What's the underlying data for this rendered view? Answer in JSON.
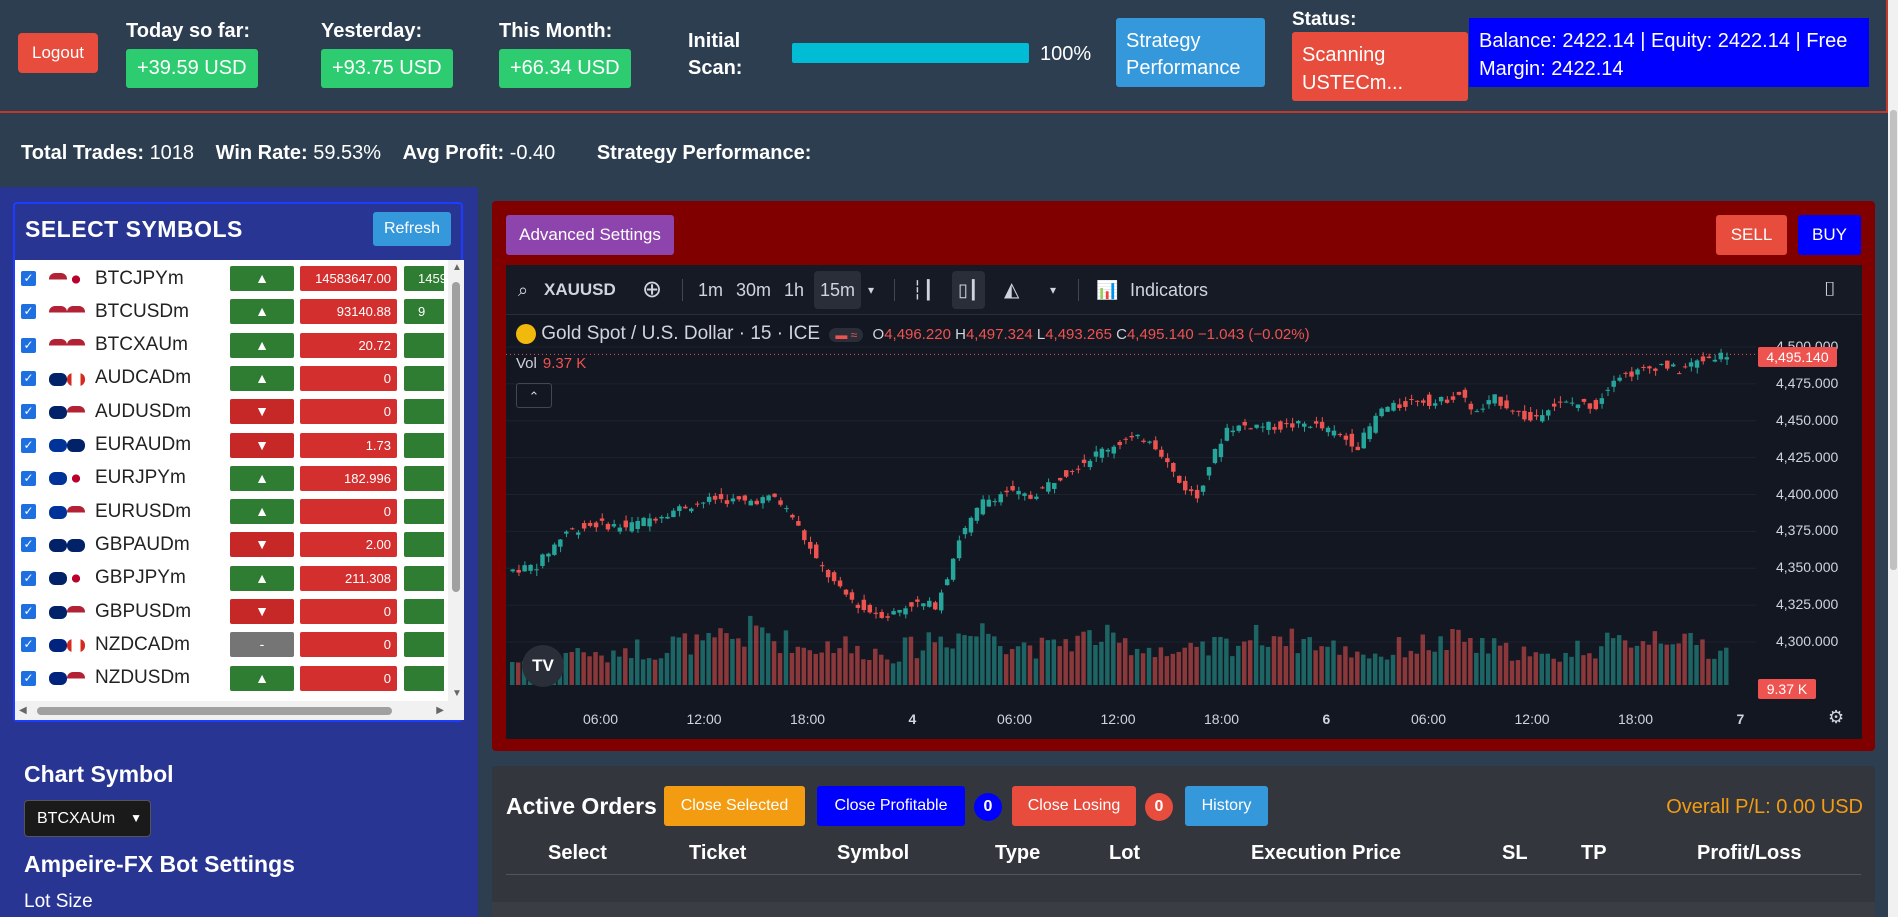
{
  "header": {
    "logout_label": "Logout",
    "today_label": "Today so far:",
    "today_value": "+39.59 USD",
    "yesterday_label": "Yesterday:",
    "yesterday_value": "+93.75 USD",
    "month_label": "This Month:",
    "month_value": "+66.34 USD",
    "scan_label_1": "Initial",
    "scan_label_2": "Scan:",
    "scan_progress": 1.0,
    "scan_percent": "100%",
    "strategy_label_1": "Strategy",
    "strategy_label_2": "Performance",
    "status_label": "Status:",
    "status_value_1": "Scanning",
    "status_value_2": "USTECm...",
    "balance_line_1": "Balance: 2422.14 | Equity: 2422.14 | Free",
    "balance_line_2": "Margin: 2422.14"
  },
  "summary": {
    "trades_label": "Total Trades:",
    "trades_value": "1018",
    "winrate_label": "Win Rate:",
    "winrate_value": "59.53%",
    "avgprofit_label": "Avg Profit:",
    "avgprofit_value": "-0.40",
    "strategy_label": "Strategy Performance:"
  },
  "sidebar": {
    "title": "SELECT SYMBOLS",
    "refresh_label": "Refresh",
    "symbols": [
      {
        "name": "BTCJPYm",
        "dir": "up",
        "price": "14583647.00",
        "next": "1459",
        "flags": [
          "us",
          "jp"
        ]
      },
      {
        "name": "BTCUSDm",
        "dir": "up",
        "price": "93140.88",
        "next": "9",
        "flags": [
          "us",
          "us"
        ]
      },
      {
        "name": "BTCXAUm",
        "dir": "up",
        "price": "20.72",
        "next": "",
        "flags": [
          "us",
          "us"
        ]
      },
      {
        "name": "AUDCADm",
        "dir": "up",
        "price": "0",
        "next": "",
        "flags": [
          "au",
          "ca"
        ]
      },
      {
        "name": "AUDUSDm",
        "dir": "down",
        "price": "0",
        "next": "",
        "flags": [
          "au",
          "us"
        ]
      },
      {
        "name": "EURAUDm",
        "dir": "down",
        "price": "1.73",
        "next": "",
        "flags": [
          "eu",
          "au"
        ]
      },
      {
        "name": "EURJPYm",
        "dir": "up",
        "price": "182.996",
        "next": "",
        "flags": [
          "eu",
          "jp"
        ]
      },
      {
        "name": "EURUSDm",
        "dir": "up",
        "price": "0",
        "next": "",
        "flags": [
          "eu",
          "us"
        ]
      },
      {
        "name": "GBPAUDm",
        "dir": "down",
        "price": "2.00",
        "next": "",
        "flags": [
          "gb",
          "au"
        ]
      },
      {
        "name": "GBPJPYm",
        "dir": "up",
        "price": "211.308",
        "next": "",
        "flags": [
          "gb",
          "jp"
        ]
      },
      {
        "name": "GBPUSDm",
        "dir": "down",
        "price": "0",
        "next": "",
        "flags": [
          "gb",
          "us"
        ]
      },
      {
        "name": "NZDCADm",
        "dir": "flat",
        "price": "0",
        "next": "",
        "flags": [
          "nz",
          "ca"
        ]
      },
      {
        "name": "NZDUSDm",
        "dir": "up",
        "price": "0",
        "next": "",
        "flags": [
          "nz",
          "us"
        ]
      }
    ],
    "arrow_glyphs": {
      "up": "▲",
      "down": "▼",
      "flat": "-"
    },
    "chart_symbol_label": "Chart Symbol",
    "chart_symbol_value": "BTCXAUm",
    "bot_settings_title": "Ampeire-FX Bot Settings",
    "lot_size_label": "Lot Size"
  },
  "chart_panel": {
    "advanced_label": "Advanced Settings",
    "sell_label": "SELL",
    "buy_label": "BUY",
    "symbol": "XAUUSD",
    "timeframes": [
      "1m",
      "30m",
      "1h",
      "15m"
    ],
    "active_timeframe": "15m",
    "indicators_label": "Indicators",
    "title": "Gold Spot / U.S. Dollar · 15 · ICE",
    "o_label": "O",
    "o_val": "4,496.220",
    "h_label": "H",
    "h_val": "4,497.324",
    "l_label": "L",
    "l_val": "4,493.265",
    "c_label": "C",
    "c_val": "4,495.140",
    "change": "−1.043 (−0.02%)",
    "vol_label": "Vol",
    "vol_val": "9.37 K",
    "last_price": "4,495.140",
    "last_vol": "9.37 K",
    "logo_text": "TV"
  },
  "chart_data": {
    "type": "candlestick",
    "y_ticks": [
      "4,500.000",
      "4,475.000",
      "4,450.000",
      "4,425.000",
      "4,400.000",
      "4,375.000",
      "4,350.000",
      "4,325.000",
      "4,300.000"
    ],
    "ylim": [
      4300,
      4500
    ],
    "x_ticks": [
      "06:00",
      "12:00",
      "18:00",
      "4",
      "06:00",
      "12:00",
      "18:00",
      "6",
      "06:00",
      "12:00",
      "18:00",
      "7"
    ],
    "path_points": [
      [
        0,
        4348
      ],
      [
        5,
        4352
      ],
      [
        10,
        4375
      ],
      [
        15,
        4380
      ],
      [
        20,
        4378
      ],
      [
        25,
        4385
      ],
      [
        30,
        4392
      ],
      [
        35,
        4397
      ],
      [
        40,
        4395
      ],
      [
        45,
        4398
      ],
      [
        48,
        4385
      ],
      [
        52,
        4355
      ],
      [
        56,
        4335
      ],
      [
        60,
        4322
      ],
      [
        64,
        4318
      ],
      [
        68,
        4326
      ],
      [
        72,
        4325
      ],
      [
        74,
        4345
      ],
      [
        76,
        4370
      ],
      [
        80,
        4395
      ],
      [
        84,
        4402
      ],
      [
        88,
        4398
      ],
      [
        92,
        4410
      ],
      [
        96,
        4420
      ],
      [
        100,
        4430
      ],
      [
        104,
        4437
      ],
      [
        108,
        4438
      ],
      [
        110,
        4428
      ],
      [
        113,
        4408
      ],
      [
        116,
        4398
      ],
      [
        118,
        4420
      ],
      [
        121,
        4445
      ],
      [
        125,
        4447
      ],
      [
        130,
        4446
      ],
      [
        135,
        4448
      ],
      [
        140,
        4440
      ],
      [
        143,
        4433
      ],
      [
        147,
        4458
      ],
      [
        150,
        4460
      ],
      [
        153,
        4465
      ],
      [
        156,
        4462
      ],
      [
        160,
        4468
      ],
      [
        163,
        4455
      ],
      [
        166,
        4465
      ],
      [
        169,
        4458
      ],
      [
        172,
        4450
      ],
      [
        175,
        4460
      ],
      [
        179,
        4462
      ],
      [
        183,
        4460
      ],
      [
        186,
        4480
      ],
      [
        190,
        4483
      ],
      [
        194,
        4488
      ],
      [
        197,
        4484
      ],
      [
        200,
        4490
      ],
      [
        203,
        4494
      ],
      [
        205,
        4495
      ]
    ],
    "volume_level": [
      0.35,
      0.45,
      0.5,
      0.4,
      0.55,
      0.5,
      0.62,
      0.6,
      0.7,
      0.8,
      0.65,
      0.55,
      0.6,
      0.5,
      0.45,
      0.55,
      0.7,
      0.75,
      0.8,
      0.6,
      0.55,
      0.65,
      0.7,
      0.6,
      0.55,
      0.45,
      0.5,
      0.6,
      0.7,
      0.75,
      0.65,
      0.55,
      0.5,
      0.45,
      0.55,
      0.6,
      0.65,
      0.55,
      0.5,
      0.4,
      0.45,
      0.55,
      0.6,
      0.7,
      0.75,
      0.6,
      0.5
    ]
  },
  "orders": {
    "title": "Active Orders",
    "close_selected": "Close Selected",
    "close_profitable": "Close Profitable",
    "profitable_count": "0",
    "close_losing": "Close Losing",
    "losing_count": "0",
    "history": "History",
    "overall_pl": "Overall P/L: 0.00 USD",
    "columns": [
      "Select",
      "Ticket",
      "Symbol",
      "Type",
      "Lot",
      "Execution Price",
      "SL",
      "TP",
      "Profit/Loss"
    ]
  },
  "colors": {
    "accent_green": "#2ecc71",
    "accent_red": "#e74c3c",
    "accent_blue": "#3498db",
    "chart_up": "#26a69a",
    "chart_down": "#ef5350"
  }
}
